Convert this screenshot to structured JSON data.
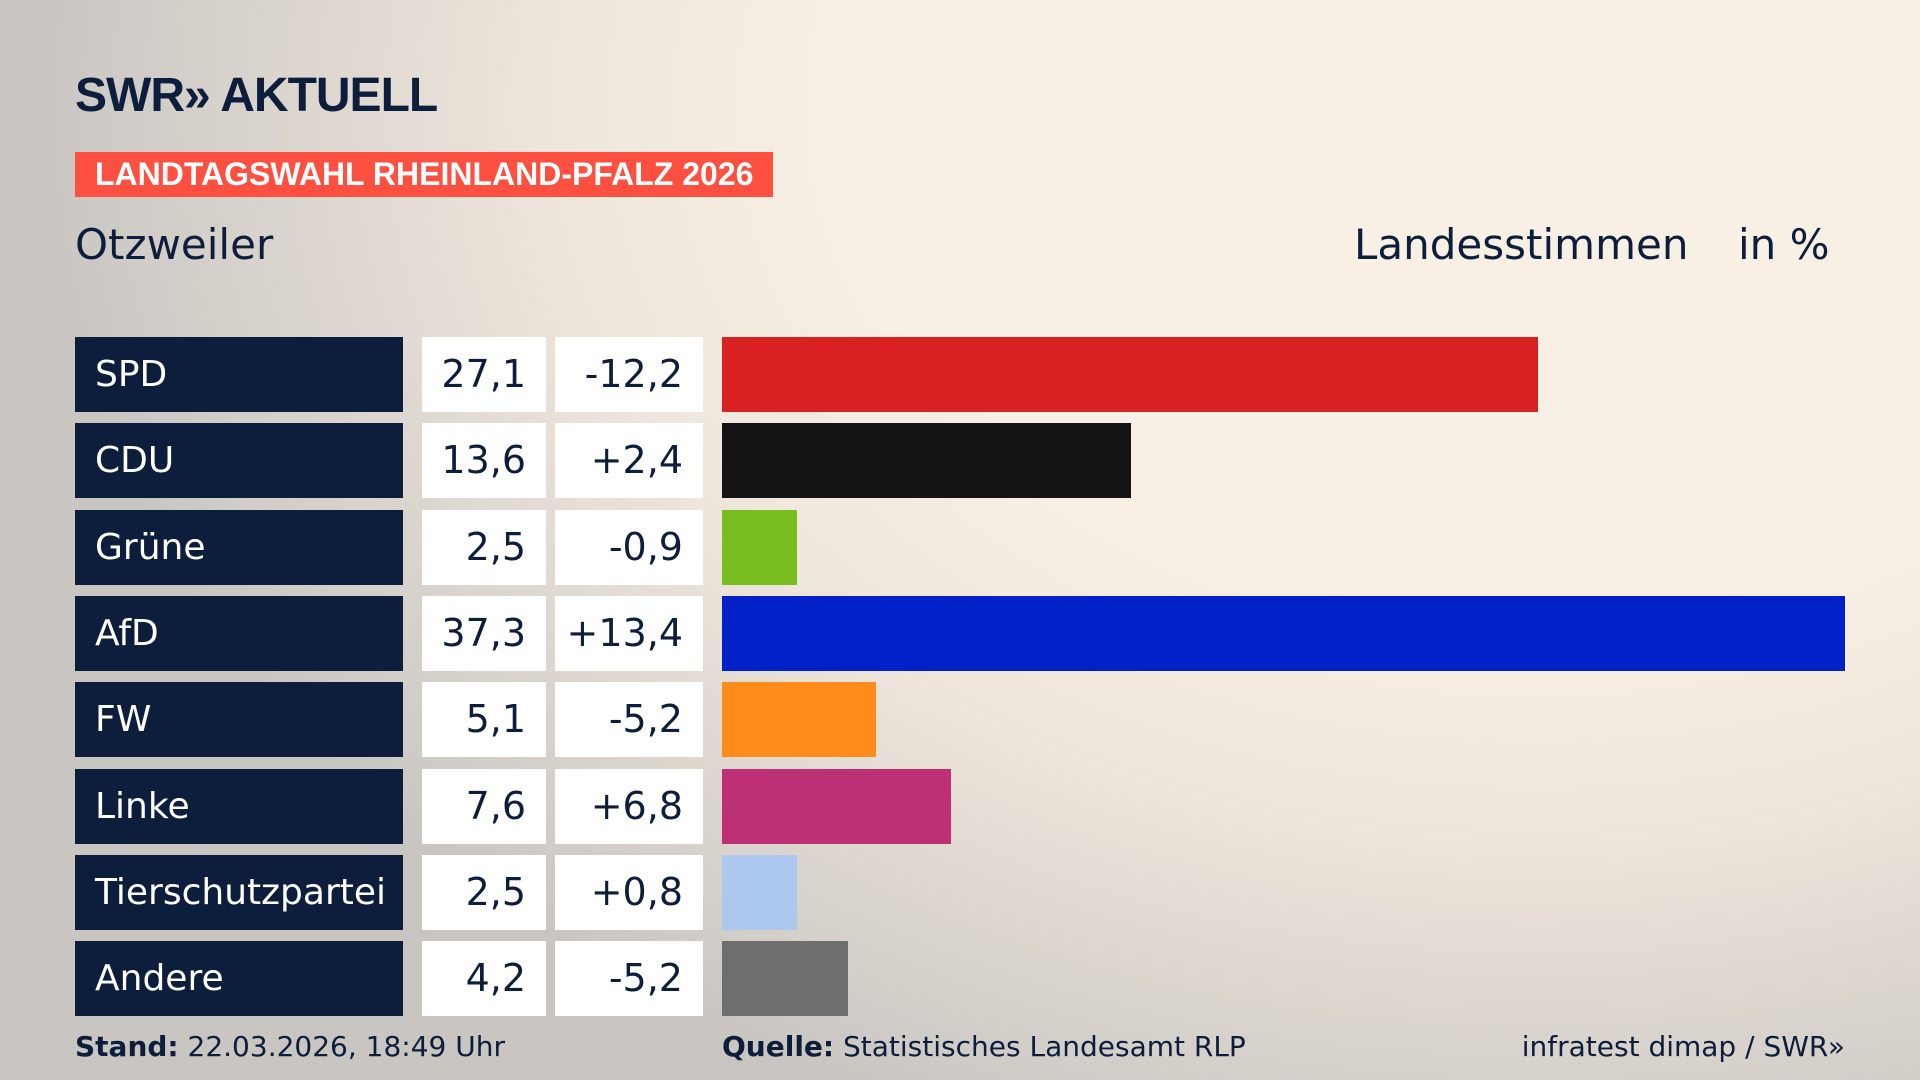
{
  "header": {
    "logo": "SWR» AKTUELL",
    "banner": "LANDTAGSWAHL RHEINLAND-PFALZ 2026",
    "region": "Otzweiler",
    "measure": "Landesstimmen",
    "unit": "in %"
  },
  "chart_data": {
    "type": "bar",
    "orientation": "horizontal",
    "categories": [
      "SPD",
      "CDU",
      "Grüne",
      "AfD",
      "FW",
      "Linke",
      "Tierschutzpartei",
      "Andere"
    ],
    "values": [
      27.1,
      13.6,
      2.5,
      37.3,
      5.1,
      7.6,
      2.5,
      4.2
    ],
    "value_labels": [
      "27,1",
      "13,6",
      "2,5",
      "37,3",
      "5,1",
      "7,6",
      "2,5",
      "4,2"
    ],
    "change_labels": [
      "-12,2",
      "+2,4",
      "-0,9",
      "+13,4",
      "-5,2",
      "+6,8",
      "+0,8",
      "-5,2"
    ],
    "colors": [
      "#d92121",
      "#141414",
      "#78be20",
      "#0021c8",
      "#ff8c1a",
      "#be3075",
      "#adc8ef",
      "#6e6e6e"
    ],
    "xlim": [
      0,
      37.3
    ],
    "grid": false
  },
  "footer": {
    "stand_label": "Stand:",
    "stand_value": "22.03.2026, 18:49 Uhr",
    "source_label": "Quelle:",
    "source_value": "Statistisches Landesamt RLP",
    "credit": "infratest dimap / SWR»"
  }
}
